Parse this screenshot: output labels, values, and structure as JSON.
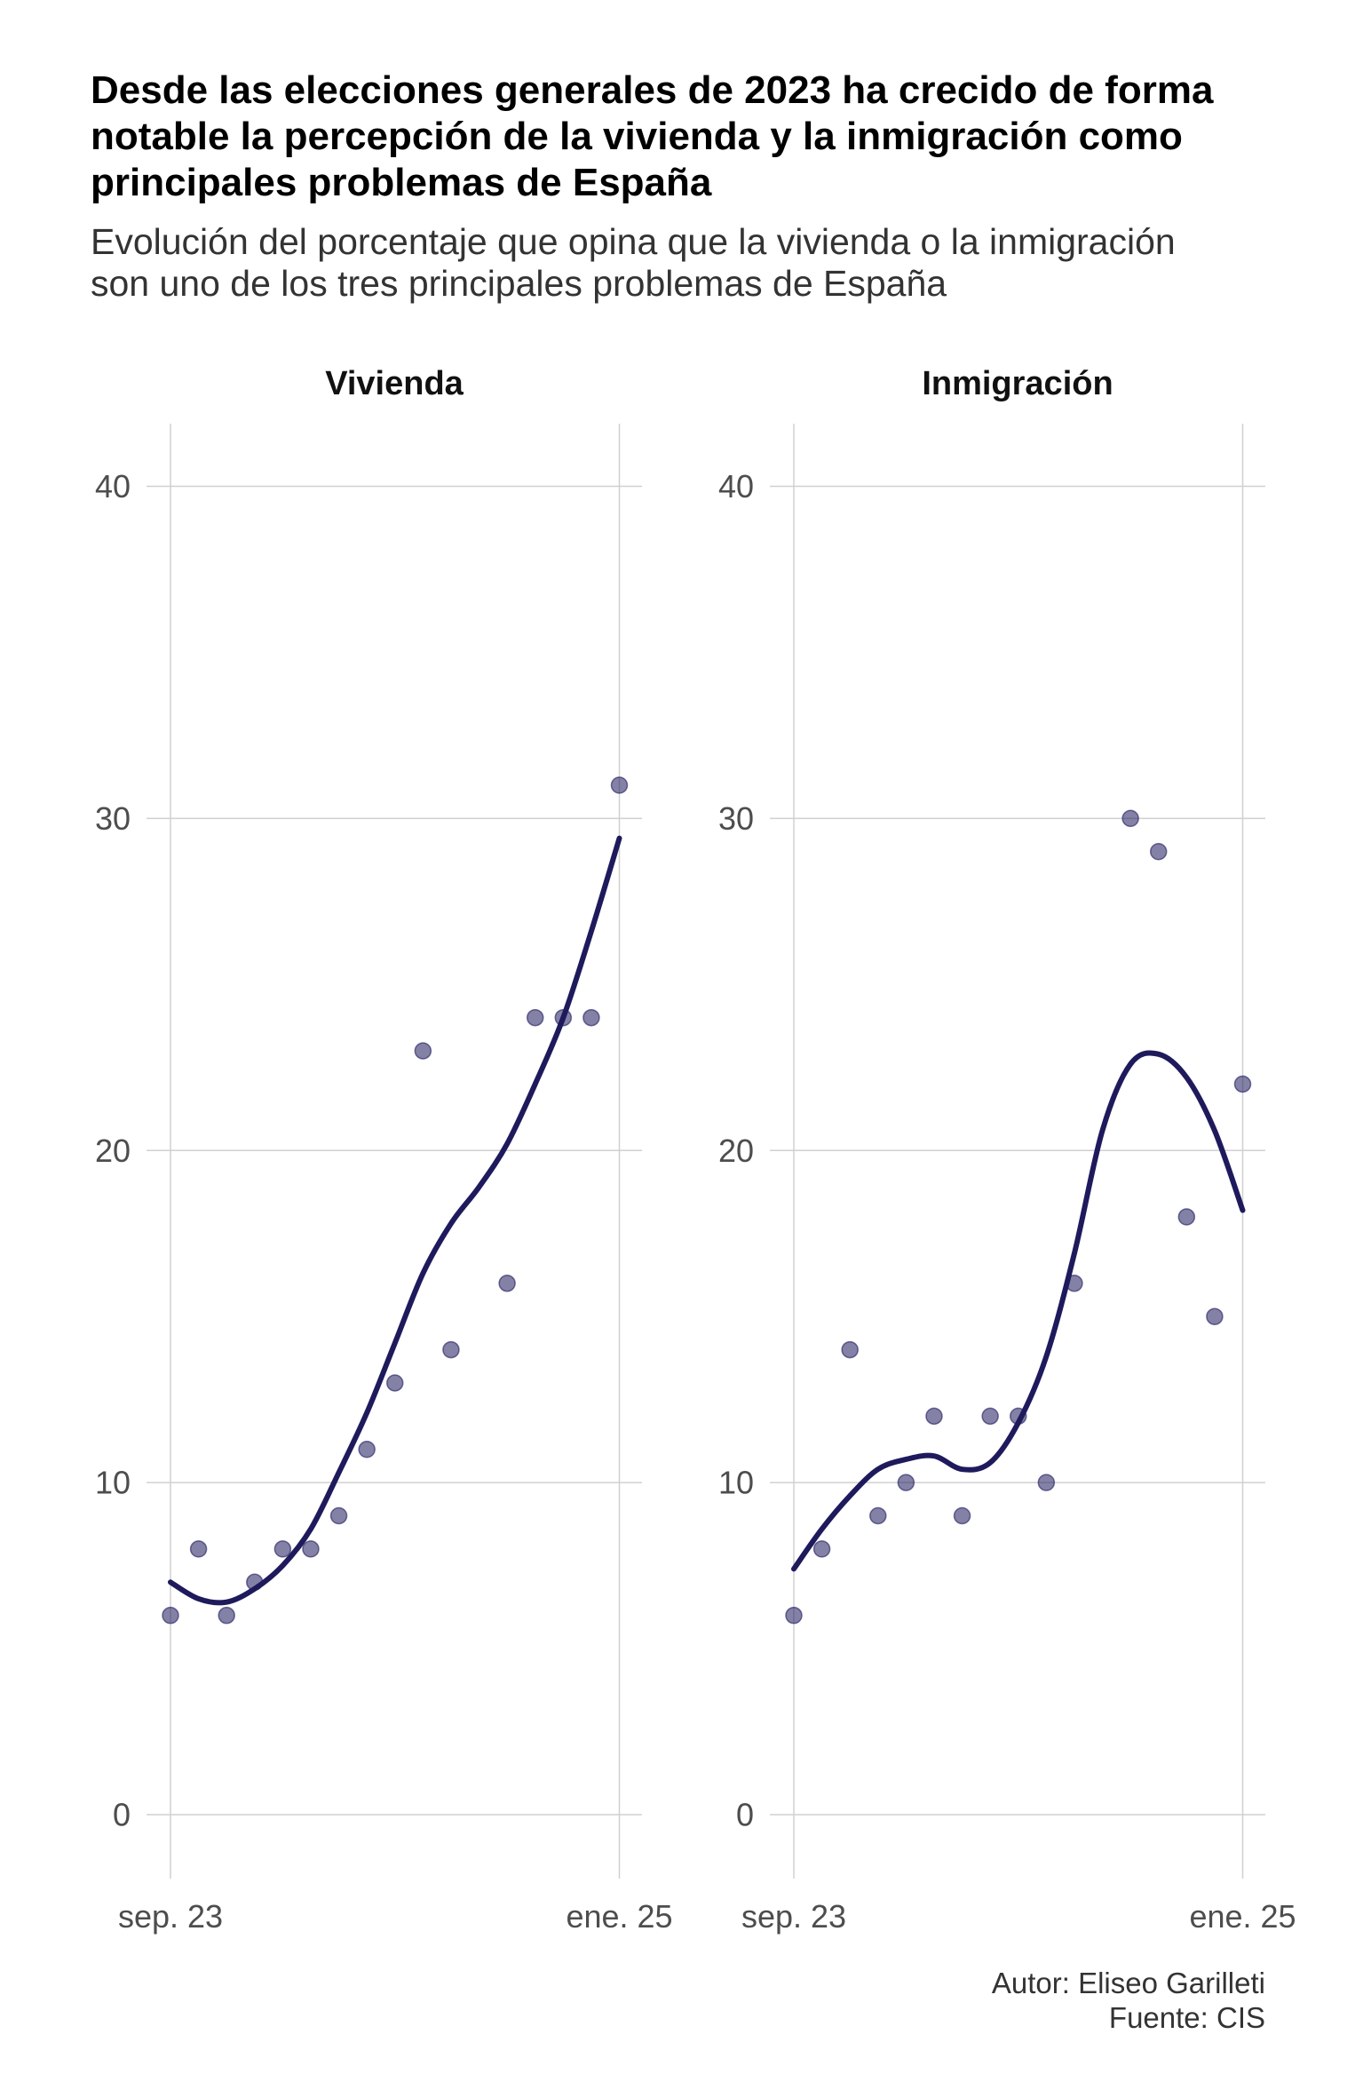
{
  "header": {
    "title": "Desde las elecciones generales de 2023 ha crecido de forma\nnotable la percepción de la vivienda y la inmigración como\nprincipales problemas de España",
    "subtitle": "Evolución del porcentaje que opina que la vivienda o la inmigración\nson uno de los tres principales problemas de España"
  },
  "caption": {
    "author": "Autor: Eliseo Garilleti",
    "source": "Fuente: CIS"
  },
  "colors": {
    "points": "#1e1a5c",
    "trend": "#1e1a5c",
    "grid": "#d0d0d0",
    "tick_text": "#4d4d4d"
  },
  "chart_data": [
    {
      "type": "scatter",
      "title": "Vivienda",
      "xlabel": "",
      "ylabel": "",
      "xlim": [
        "2023-09",
        "2025-01"
      ],
      "ylim": [
        0,
        40
      ],
      "x_ticks": [
        {
          "value": "2023-09",
          "label": "sep. 23"
        },
        {
          "value": "2025-01",
          "label": "ene. 25"
        }
      ],
      "y_ticks": [
        0,
        10,
        20,
        30,
        40
      ],
      "grid": true,
      "series": [
        {
          "type": "scatter",
          "x": [
            "2023-09",
            "2023-10",
            "2023-11",
            "2023-12",
            "2024-01",
            "2024-02",
            "2024-03",
            "2024-04",
            "2024-05",
            "2024-06",
            "2024-07",
            "2024-09",
            "2024-10",
            "2024-11",
            "2024-12",
            "2025-01"
          ],
          "y": [
            6,
            8,
            6,
            7,
            8,
            8,
            9,
            11,
            13,
            23,
            14,
            16,
            24,
            24,
            24,
            31
          ]
        },
        {
          "type": "line",
          "smooth": true,
          "x": [
            "2023-09",
            "2023-10",
            "2023-11",
            "2023-12",
            "2024-01",
            "2024-02",
            "2024-03",
            "2024-04",
            "2024-05",
            "2024-06",
            "2024-07",
            "2024-08",
            "2024-09",
            "2024-10",
            "2024-11",
            "2024-12",
            "2025-01"
          ],
          "y": [
            7.0,
            6.5,
            6.4,
            6.8,
            7.5,
            8.6,
            10.3,
            12.1,
            14.2,
            16.3,
            17.8,
            18.9,
            20.2,
            22.0,
            24.0,
            26.6,
            29.4
          ]
        }
      ]
    },
    {
      "type": "scatter",
      "title": "Inmigración",
      "xlabel": "",
      "ylabel": "",
      "xlim": [
        "2023-09",
        "2025-01"
      ],
      "ylim": [
        0,
        40
      ],
      "x_ticks": [
        {
          "value": "2023-09",
          "label": "sep. 23"
        },
        {
          "value": "2025-01",
          "label": "ene. 25"
        }
      ],
      "y_ticks": [
        0,
        10,
        20,
        30,
        40
      ],
      "grid": true,
      "series": [
        {
          "type": "scatter",
          "x": [
            "2023-09",
            "2023-10",
            "2023-11",
            "2023-12",
            "2024-01",
            "2024-02",
            "2024-03",
            "2024-04",
            "2024-05",
            "2024-06",
            "2024-07",
            "2024-09",
            "2024-10",
            "2024-11",
            "2024-12",
            "2025-01"
          ],
          "y": [
            6,
            8,
            14,
            9,
            10,
            12,
            9,
            12,
            12,
            10,
            16,
            30,
            29,
            18,
            15,
            22
          ]
        },
        {
          "type": "line",
          "smooth": true,
          "x": [
            "2023-09",
            "2023-10",
            "2023-11",
            "2023-12",
            "2024-01",
            "2024-02",
            "2024-03",
            "2024-04",
            "2024-05",
            "2024-06",
            "2024-07",
            "2024-08",
            "2024-09",
            "2024-10",
            "2024-11",
            "2024-12",
            "2025-01"
          ],
          "y": [
            7.4,
            8.6,
            9.6,
            10.4,
            10.7,
            10.8,
            10.4,
            10.6,
            11.8,
            13.8,
            16.9,
            20.6,
            22.6,
            22.9,
            22.2,
            20.6,
            18.2
          ]
        }
      ]
    }
  ]
}
